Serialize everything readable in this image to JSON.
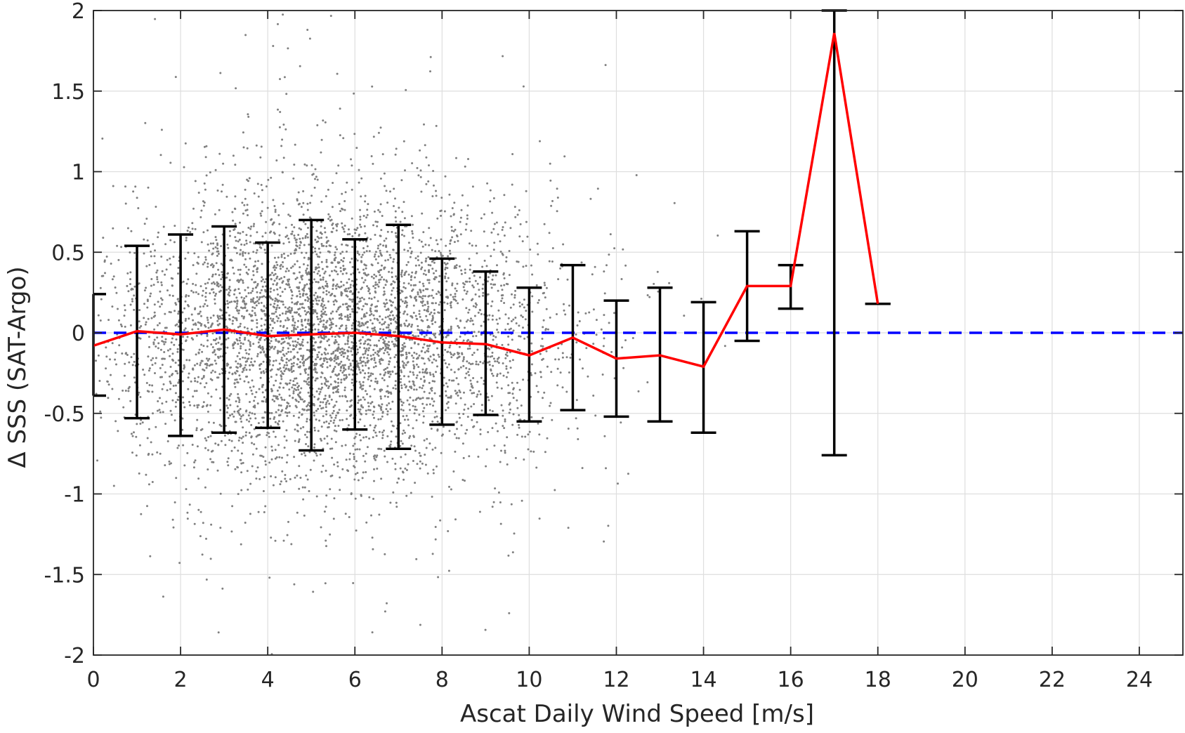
{
  "chart_data": {
    "type": "scatter",
    "title": "",
    "xlabel": "Ascat Daily Wind Speed [m/s]",
    "ylabel": "Δ SSS (SAT-Argo)",
    "xlim": [
      0,
      25
    ],
    "ylim": [
      -2,
      2
    ],
    "xticks": [
      0,
      2,
      4,
      6,
      8,
      10,
      12,
      14,
      16,
      18,
      20,
      22,
      24
    ],
    "xtick_labels": [
      "0",
      "2",
      "4",
      "6",
      "8",
      "10",
      "12",
      "14",
      "16",
      "18",
      "20",
      "22",
      "24"
    ],
    "yticks": [
      -2,
      -1.5,
      -1,
      -0.5,
      0,
      0.5,
      1,
      1.5,
      2
    ],
    "ytick_labels": [
      "-2",
      "-1.5",
      "-1",
      "-0.5",
      "0",
      "0.5",
      "1",
      "1.5",
      "2"
    ],
    "grid": true,
    "series": [
      {
        "kind": "errorbar_mean",
        "color": "#ff0000",
        "x": [
          0,
          1,
          2,
          3,
          4,
          5,
          6,
          7,
          8,
          9,
          10,
          11,
          12,
          13,
          14,
          15,
          16,
          17,
          18
        ],
        "y": [
          -0.08,
          0.01,
          -0.01,
          0.02,
          -0.02,
          -0.01,
          0.0,
          -0.02,
          -0.06,
          -0.07,
          -0.14,
          -0.03,
          -0.16,
          -0.14,
          -0.21,
          0.29,
          0.29,
          1.86,
          0.18
        ],
        "upper": [
          0.24,
          0.54,
          0.61,
          0.66,
          0.56,
          0.7,
          0.58,
          0.67,
          0.46,
          0.38,
          0.28,
          0.42,
          0.2,
          0.28,
          0.19,
          0.63,
          0.42,
          2.0,
          0.18
        ],
        "lower": [
          -0.39,
          -0.53,
          -0.64,
          -0.62,
          -0.59,
          -0.73,
          -0.6,
          -0.72,
          -0.57,
          -0.51,
          -0.55,
          -0.48,
          -0.52,
          -0.55,
          -0.62,
          -0.05,
          0.15,
          -0.76,
          0.18
        ]
      },
      {
        "kind": "reference_line",
        "color": "#0000ff",
        "style": "dashed",
        "y": 0
      },
      {
        "kind": "scatter_cloud",
        "color": "#808080",
        "n_points": 5000,
        "x_range": [
          0,
          17
        ],
        "y_range": [
          -2,
          2
        ]
      }
    ],
    "colors": {
      "mean_line": "#ff0000",
      "zero_line": "#0000ff",
      "errorbar": "#000000",
      "scatter": "#808080",
      "grid": "#dedede",
      "axis": "#262626"
    }
  }
}
